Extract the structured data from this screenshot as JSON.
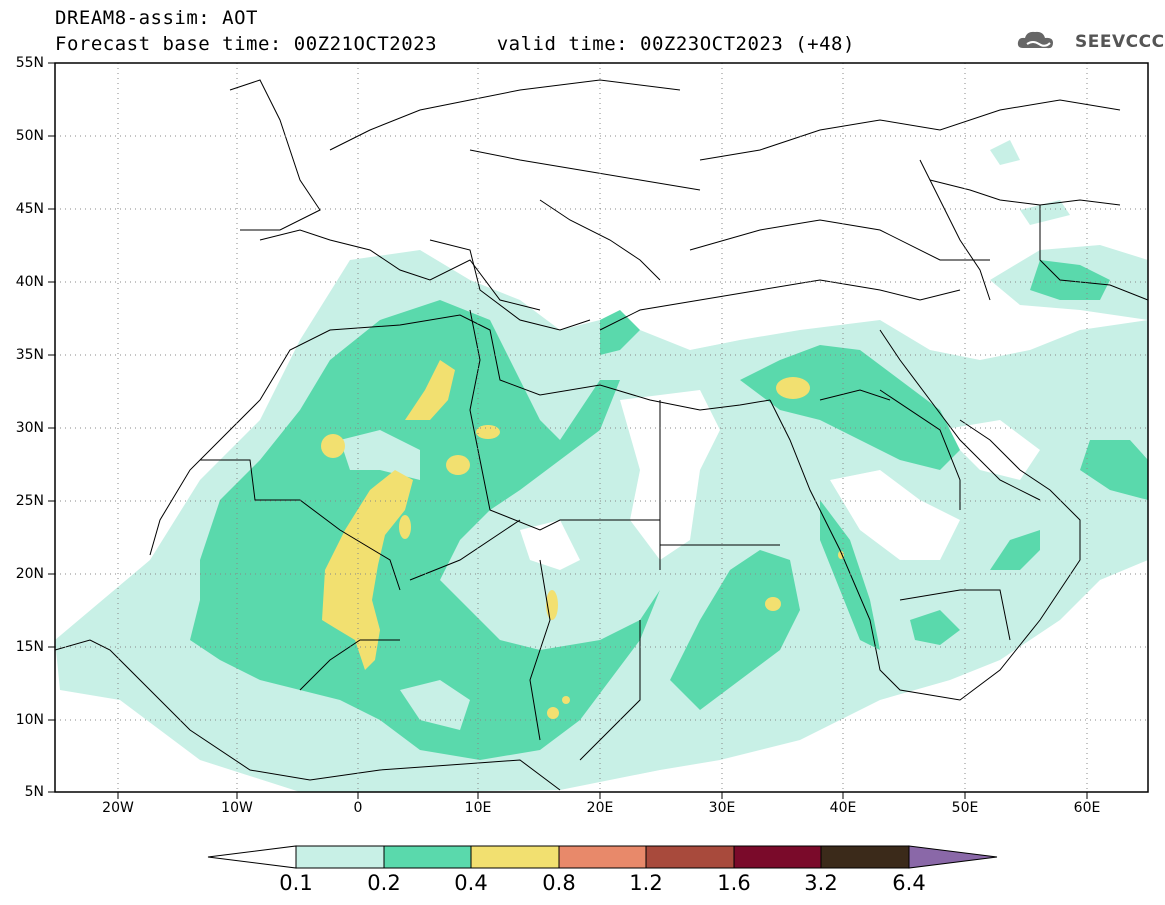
{
  "title": {
    "line1": "DREAM8-assim: AOT",
    "line2": "Forecast base time: 00Z21OCT2023     valid time: 00Z23OCT2023 (+48)"
  },
  "logo": {
    "text": "SEEVCCC",
    "icon": "cloud-logo-icon"
  },
  "axes": {
    "lat_labels": [
      "55N",
      "50N",
      "45N",
      "40N",
      "35N",
      "30N",
      "25N",
      "20N",
      "15N",
      "10N",
      "5N"
    ],
    "lon_labels": [
      "20W",
      "10W",
      "0",
      "10E",
      "20E",
      "30E",
      "40E",
      "50E",
      "60E"
    ],
    "lat_range": [
      5,
      55
    ],
    "lon_range": [
      -25,
      65
    ],
    "grid": "dotted"
  },
  "colorbar": {
    "labels": [
      "0.1",
      "0.2",
      "0.4",
      "0.8",
      "1.2",
      "1.6",
      "3.2",
      "6.4"
    ],
    "colors": [
      "#ffffff",
      "#c8f0e6",
      "#5ad9ac",
      "#f2e070",
      "#e8896a",
      "#a84a3c",
      "#7a0a2a",
      "#3b2a1a",
      "#8a68a8"
    ]
  }
}
